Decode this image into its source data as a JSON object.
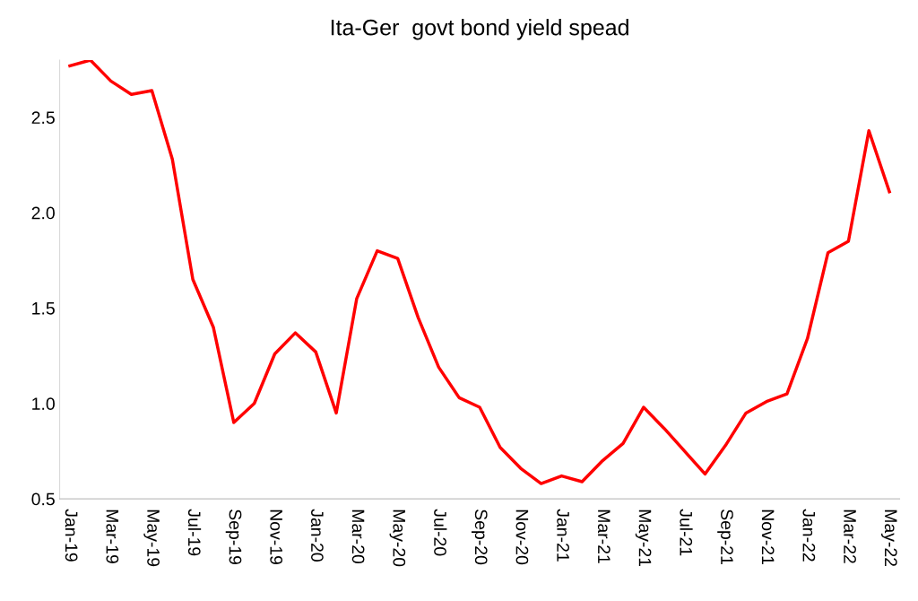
{
  "chart_data": {
    "type": "line",
    "title": "Ita-Ger  govt bond yield spead",
    "categories": [
      "Jan-19",
      null,
      "Mar-19",
      null,
      "May-19",
      null,
      "Jul-19",
      null,
      "Sep-19",
      null,
      "Nov-19",
      null,
      "Jan-20",
      null,
      "Mar-20",
      null,
      "May-20",
      null,
      "Jul-20",
      null,
      "Sep-20",
      null,
      "Nov-20",
      null,
      "Jan-21",
      null,
      "Mar-21",
      null,
      "May-21",
      null,
      "Jul-21",
      null,
      "Sep-21",
      null,
      "Nov-21",
      null,
      "Jan-22",
      null,
      "Mar-22",
      null,
      "May-22"
    ],
    "series": [
      {
        "color": "#ff0000",
        "values": [
          2.77,
          2.8,
          2.69,
          2.62,
          2.64,
          2.28,
          1.65,
          1.4,
          0.9,
          1.0,
          1.26,
          1.37,
          1.27,
          0.95,
          1.55,
          1.8,
          1.76,
          1.45,
          1.19,
          1.03,
          0.98,
          0.77,
          0.66,
          0.58,
          0.62,
          0.59,
          0.7,
          0.79,
          0.98,
          0.87,
          0.75,
          0.63,
          0.78,
          0.95,
          1.01,
          1.05,
          1.34,
          1.79,
          1.85,
          2.43,
          2.11
        ]
      }
    ],
    "ylim": [
      0.5,
      2.8
    ],
    "yticks": [
      {
        "value": 0.5,
        "label": "0.5"
      },
      {
        "value": 1.0,
        "label": "1.0"
      },
      {
        "value": 1.5,
        "label": "1.5"
      },
      {
        "value": 2.0,
        "label": "2.0"
      },
      {
        "value": 2.5,
        "label": "2.5"
      }
    ],
    "grid": false,
    "legend": false,
    "marker": "none",
    "line_style": "solid"
  }
}
